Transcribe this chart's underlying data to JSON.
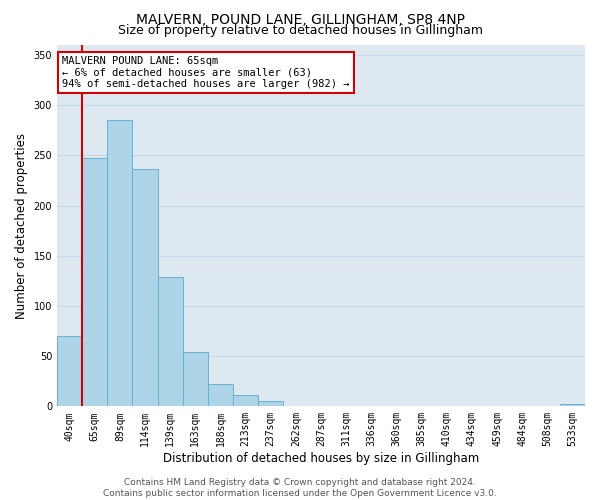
{
  "title": "MALVERN, POUND LANE, GILLINGHAM, SP8 4NP",
  "subtitle": "Size of property relative to detached houses in Gillingham",
  "xlabel": "Distribution of detached houses by size in Gillingham",
  "ylabel": "Number of detached properties",
  "bar_labels": [
    "40sqm",
    "65sqm",
    "89sqm",
    "114sqm",
    "139sqm",
    "163sqm",
    "188sqm",
    "213sqm",
    "237sqm",
    "262sqm",
    "287sqm",
    "311sqm",
    "336sqm",
    "360sqm",
    "385sqm",
    "410sqm",
    "434sqm",
    "459sqm",
    "484sqm",
    "508sqm",
    "533sqm"
  ],
  "bar_values": [
    70,
    247,
    285,
    236,
    129,
    54,
    22,
    11,
    5,
    0,
    0,
    0,
    0,
    0,
    0,
    0,
    0,
    0,
    0,
    0,
    2
  ],
  "bar_color": "#aed4e8",
  "bar_edge_color": "#5baad4",
  "highlight_bar_index": 1,
  "highlight_color": "#cc0000",
  "ylim": [
    0,
    360
  ],
  "yticks": [
    0,
    50,
    100,
    150,
    200,
    250,
    300,
    350
  ],
  "annotation_text": "MALVERN POUND LANE: 65sqm\n← 6% of detached houses are smaller (63)\n94% of semi-detached houses are larger (982) →",
  "annotation_box_color": "#ffffff",
  "annotation_box_edge_color": "#cc0000",
  "footer_line1": "Contains HM Land Registry data © Crown copyright and database right 2024.",
  "footer_line2": "Contains public sector information licensed under the Open Government Licence v3.0.",
  "grid_color": "#c8d8e8",
  "background_color": "#dde8f0",
  "title_fontsize": 10,
  "subtitle_fontsize": 9,
  "axis_label_fontsize": 8.5,
  "tick_fontsize": 7,
  "annotation_fontsize": 7.5,
  "footer_fontsize": 6.5
}
